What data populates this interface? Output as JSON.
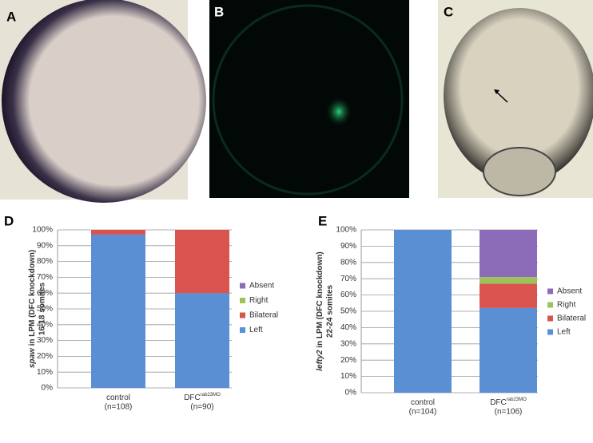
{
  "panels": [
    "A",
    "B",
    "C",
    "D",
    "E"
  ],
  "chart_data": [
    {
      "type": "stacked_bar",
      "ylabel_gene": "spaw",
      "ylabel": "in LPM (DFC knockdown)",
      "ylabel2": "16-18 somites",
      "categories": [
        "control",
        "DFC"
      ],
      "category_superscripts": [
        null,
        "rab23MO"
      ],
      "category_counts": [
        "(n=108)",
        "(n=90)"
      ],
      "series": [
        {
          "name": "Left",
          "color": "#5b8fd4",
          "values": [
            97,
            60
          ]
        },
        {
          "name": "Bilateral",
          "color": "#d9534f",
          "values": [
            3,
            40
          ]
        },
        {
          "name": "Right",
          "color": "#9bc35a",
          "values": [
            0,
            0
          ]
        },
        {
          "name": "Absent",
          "color": "#8c6bb8",
          "values": [
            0,
            0
          ]
        }
      ],
      "ylim": [
        0,
        100
      ],
      "yticks": [
        {
          "value": 0,
          "label": "0%"
        },
        {
          "value": 10,
          "label": "10%"
        },
        {
          "value": 20,
          "label": "20%"
        },
        {
          "value": 30,
          "label": "30%"
        },
        {
          "value": 40,
          "label": "40%"
        },
        {
          "value": 50,
          "label": "50%"
        },
        {
          "value": 60,
          "label": "60%"
        },
        {
          "value": 70,
          "label": "70%"
        },
        {
          "value": 80,
          "label": "80%"
        },
        {
          "value": 90,
          "label": "90%"
        },
        {
          "value": 100,
          "label": "100%"
        }
      ],
      "grid": true,
      "legend": "right"
    },
    {
      "type": "stacked_bar",
      "ylabel_gene": "lefty2",
      "ylabel": "in LPM (DFC knockdown)",
      "ylabel2": "22-24 somites",
      "categories": [
        "control",
        "DFC"
      ],
      "category_superscripts": [
        null,
        "rab23MO"
      ],
      "category_counts": [
        "(n=104)",
        "(n=106)"
      ],
      "series": [
        {
          "name": "Left",
          "color": "#5b8fd4",
          "values": [
            100,
            52
          ]
        },
        {
          "name": "Bilateral",
          "color": "#d9534f",
          "values": [
            0,
            15
          ]
        },
        {
          "name": "Right",
          "color": "#9bc35a",
          "values": [
            0,
            4
          ]
        },
        {
          "name": "Absent",
          "color": "#8c6bb8",
          "values": [
            0,
            29
          ]
        }
      ],
      "ylim": [
        0,
        100
      ],
      "yticks": [
        {
          "value": 0,
          "label": "0%"
        },
        {
          "value": 10,
          "label": "10%"
        },
        {
          "value": 20,
          "label": "20%"
        },
        {
          "value": 30,
          "label": "30%"
        },
        {
          "value": 40,
          "label": "40%"
        },
        {
          "value": 50,
          "label": "50%"
        },
        {
          "value": 60,
          "label": "60%"
        },
        {
          "value": 70,
          "label": "70%"
        },
        {
          "value": 80,
          "label": "80%"
        },
        {
          "value": 90,
          "label": "90%"
        },
        {
          "value": 100,
          "label": "100%"
        }
      ],
      "grid": true,
      "legend": "right"
    }
  ]
}
